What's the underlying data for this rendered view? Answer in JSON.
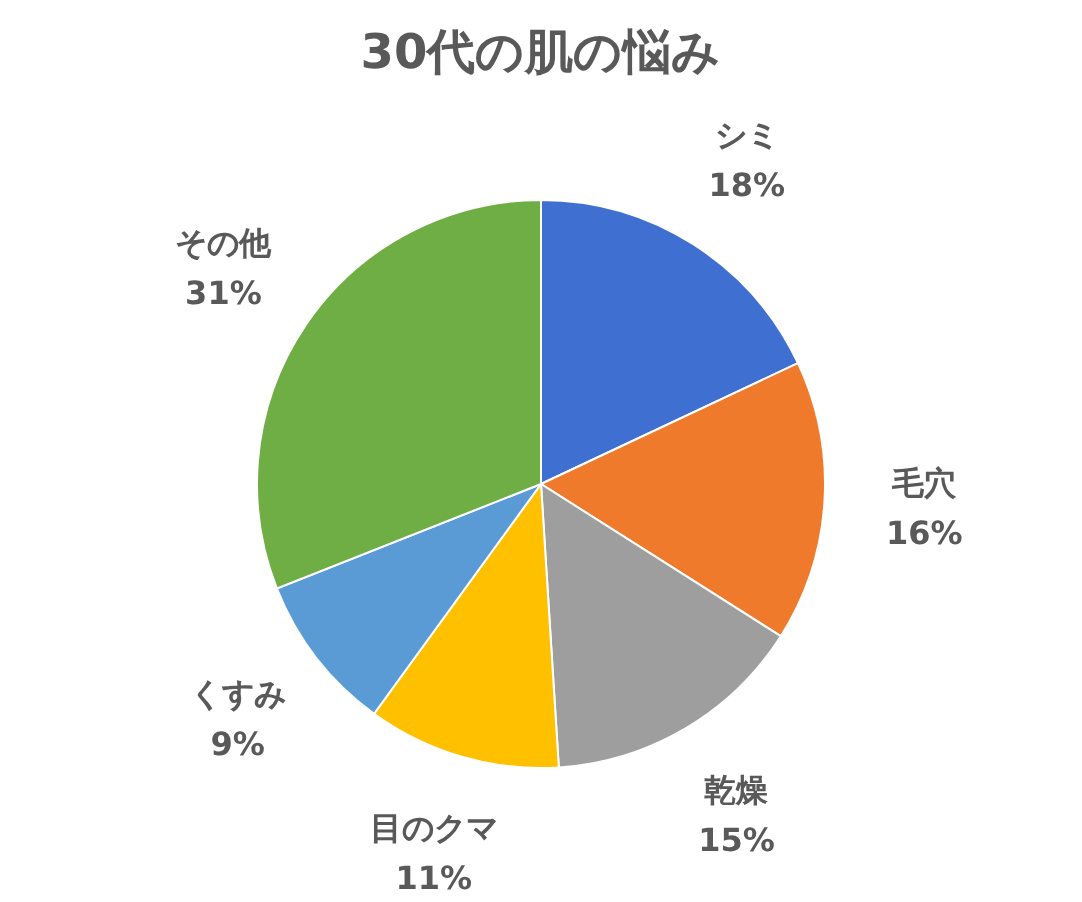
{
  "chart_data": {
    "type": "pie",
    "title": "30代の肌の悩み",
    "categories": [
      "シミ",
      "毛穴",
      "乾燥",
      "目のクマ",
      "くすみ",
      "その他"
    ],
    "values": [
      18,
      16,
      15,
      11,
      9,
      31
    ],
    "value_labels": [
      "18%",
      "16%",
      "15%",
      "11%",
      "9%",
      "31%"
    ],
    "colors": [
      "#3f6fd0",
      "#f07a2c",
      "#9e9e9e",
      "#ffc000",
      "#5b9bd5",
      "#6fae44"
    ],
    "legend": false
  }
}
